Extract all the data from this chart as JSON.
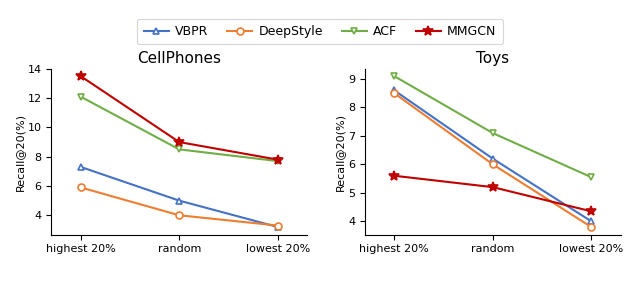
{
  "legend_entries": [
    "VBPR",
    "DeepStyle",
    "ACF",
    "MMGCN"
  ],
  "colors": [
    "#4472C4",
    "#ED7D31",
    "#70AD47",
    "#C00000"
  ],
  "markers": [
    "^",
    "o",
    "v",
    "*"
  ],
  "xtick_labels": [
    "highest 20%",
    "random",
    "lowest 20%"
  ],
  "cellphones": {
    "title": "CellPhones",
    "ylabel": "Recall@20(%)",
    "VBPR": [
      7.3,
      5.0,
      3.2
    ],
    "DeepStyle": [
      5.9,
      4.0,
      3.3
    ],
    "ACF": [
      12.1,
      8.5,
      7.7
    ],
    "MMGCN": [
      13.5,
      9.0,
      7.8
    ]
  },
  "toys": {
    "title": "Toys",
    "ylabel": "Recall@20(%)",
    "VBPR": [
      8.6,
      6.2,
      4.0
    ],
    "DeepStyle": [
      8.5,
      6.0,
      3.8
    ],
    "ACF": [
      9.1,
      7.1,
      5.55
    ],
    "MMGCN": [
      5.6,
      5.2,
      4.35
    ]
  },
  "figsize": [
    6.4,
    2.86
  ],
  "dpi": 100,
  "legend_fontsize": 9,
  "title_fontsize": 11,
  "ylabel_fontsize": 8,
  "tick_fontsize": 8,
  "linewidth": 1.5,
  "markersize": 5,
  "markersize_star": 7
}
